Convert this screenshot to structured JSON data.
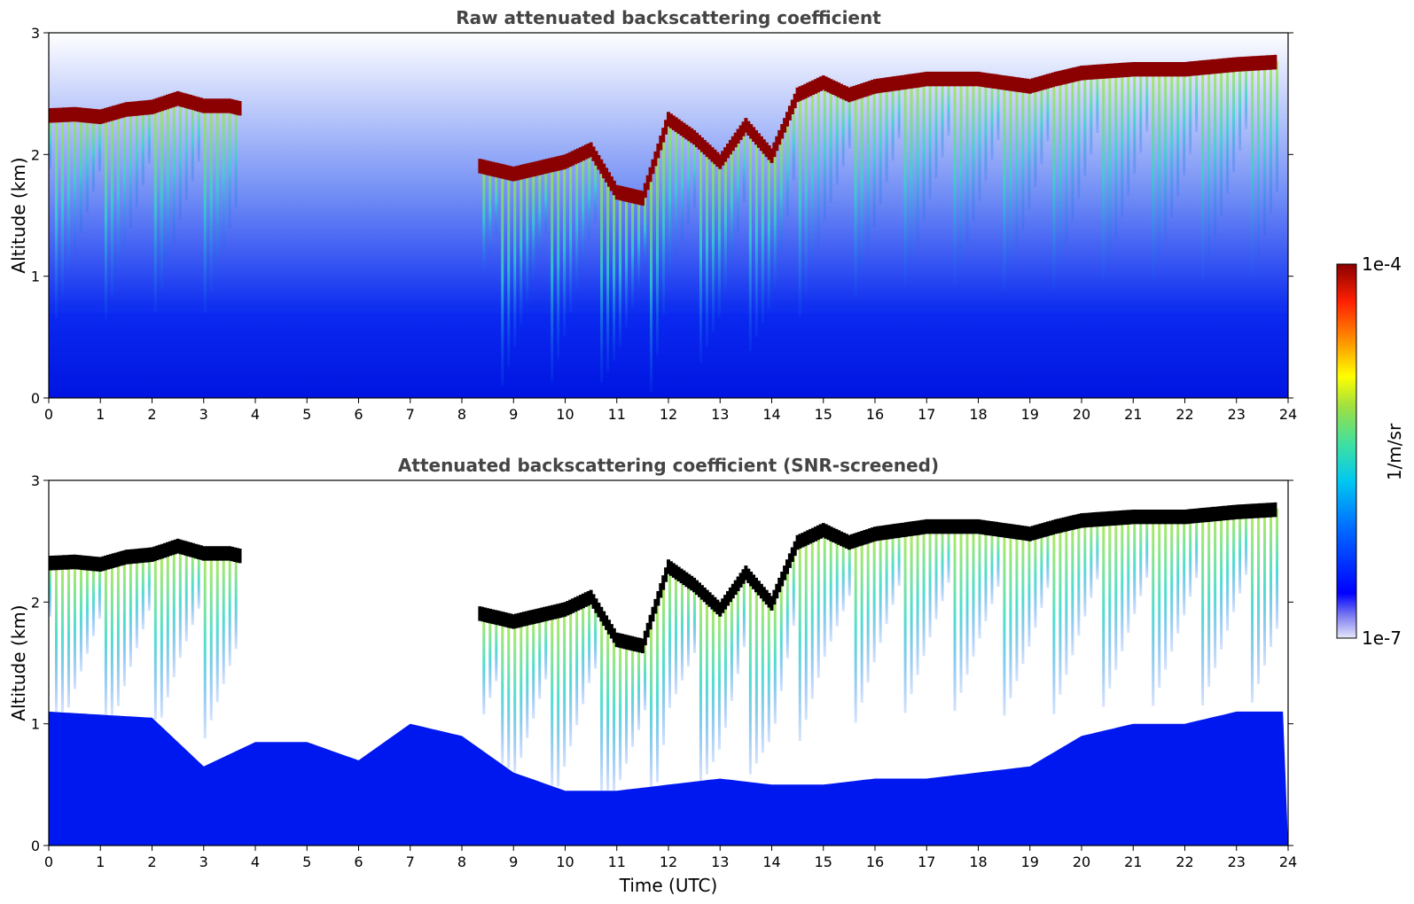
{
  "chart_data": [
    {
      "type": "heatmap",
      "title": "Raw attenuated backscattering coefficient",
      "xlabel": "",
      "ylabel": "Altitude (km)",
      "xlim": [
        0,
        24
      ],
      "ylim": [
        0,
        3
      ],
      "x_ticks": [
        "0",
        "1",
        "2",
        "3",
        "4",
        "5",
        "6",
        "7",
        "8",
        "9",
        "10",
        "11",
        "12",
        "13",
        "14",
        "15",
        "16",
        "17",
        "18",
        "19",
        "20",
        "21",
        "22",
        "23",
        "24"
      ],
      "y_ticks": [
        "0",
        "1",
        "2",
        "3"
      ],
      "grid": false,
      "screened": false,
      "cloud_top_km": [
        [
          0,
          2.38
        ],
        [
          0.5,
          2.39
        ],
        [
          1,
          2.37
        ],
        [
          1.5,
          2.43
        ],
        [
          2,
          2.45
        ],
        [
          2.5,
          2.52
        ],
        [
          3,
          2.46
        ],
        [
          3.5,
          2.46
        ],
        [
          8.5,
          1.95
        ],
        [
          9,
          1.9
        ],
        [
          9.5,
          1.95
        ],
        [
          10,
          2.0
        ],
        [
          10.5,
          2.1
        ],
        [
          11,
          1.75
        ],
        [
          11.5,
          1.7
        ],
        [
          12,
          2.35
        ],
        [
          12.5,
          2.2
        ],
        [
          13,
          2.0
        ],
        [
          13.5,
          2.3
        ],
        [
          14,
          2.05
        ],
        [
          14.5,
          2.55
        ],
        [
          15,
          2.65
        ],
        [
          15.5,
          2.55
        ],
        [
          16,
          2.62
        ],
        [
          17,
          2.68
        ],
        [
          18,
          2.68
        ],
        [
          19,
          2.62
        ],
        [
          19.5,
          2.68
        ],
        [
          20,
          2.73
        ],
        [
          21,
          2.76
        ],
        [
          22,
          2.76
        ],
        [
          23,
          2.8
        ],
        [
          23.8,
          2.82
        ]
      ]
    },
    {
      "type": "heatmap",
      "title": "Attenuated backscattering coefficient (SNR-screened)",
      "xlabel": "Time (UTC)",
      "ylabel": "Altitude (km)",
      "xlim": [
        0,
        24
      ],
      "ylim": [
        0,
        3
      ],
      "x_ticks": [
        "0",
        "1",
        "2",
        "3",
        "4",
        "5",
        "6",
        "7",
        "8",
        "9",
        "10",
        "11",
        "12",
        "13",
        "14",
        "15",
        "16",
        "17",
        "18",
        "19",
        "20",
        "21",
        "22",
        "23",
        "24"
      ],
      "y_ticks": [
        "0",
        "1",
        "2",
        "3"
      ],
      "grid": false,
      "screened": true,
      "boundary_layer_top_km": [
        [
          0,
          1.1
        ],
        [
          2,
          1.05
        ],
        [
          3,
          0.65
        ],
        [
          4,
          0.85
        ],
        [
          5,
          0.85
        ],
        [
          6,
          0.7
        ],
        [
          7,
          1.0
        ],
        [
          8,
          0.9
        ],
        [
          9,
          0.6
        ],
        [
          10,
          0.45
        ],
        [
          11,
          0.45
        ],
        [
          12,
          0.5
        ],
        [
          13,
          0.55
        ],
        [
          14,
          0.5
        ],
        [
          15,
          0.5
        ],
        [
          16,
          0.55
        ],
        [
          17,
          0.55
        ],
        [
          18,
          0.6
        ],
        [
          19,
          0.65
        ],
        [
          20,
          0.9
        ],
        [
          21,
          1.0
        ],
        [
          22,
          1.0
        ],
        [
          23,
          1.1
        ],
        [
          23.8,
          1.1
        ]
      ]
    }
  ],
  "colorbar": {
    "label": "1/m/sr",
    "max_label": "1e-4",
    "min_label": "1e-7",
    "scale": "log",
    "colormap": [
      "#e6e6fa",
      "#0000ff",
      "#00bfff",
      "#40e0a0",
      "#a0e040",
      "#ffff00",
      "#ff8c00",
      "#ff2000",
      "#8b0000"
    ]
  },
  "colors": {
    "background_low": "#0018f0",
    "cloud_core_raw": "#8b0000",
    "cloud_core_screened": "#000000",
    "cloud_body": "#e8e820",
    "fallstreak": "#40d0b0"
  }
}
